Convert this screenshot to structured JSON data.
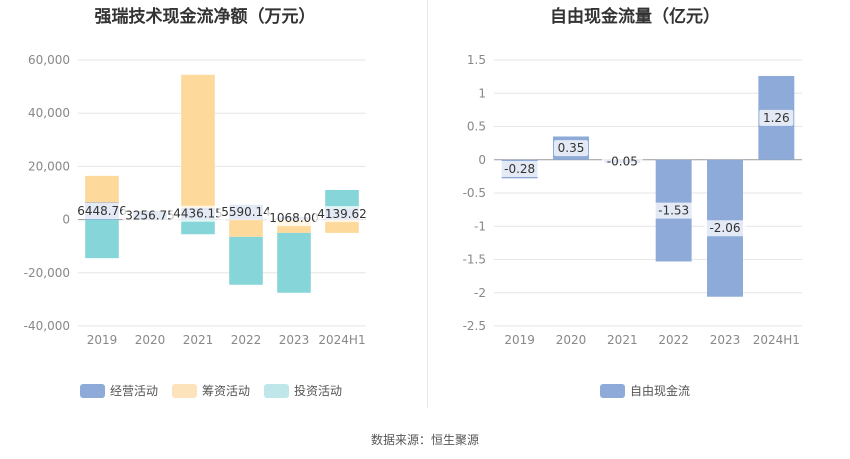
{
  "titles": {
    "left": "强瑞技术现金流净额（万元）",
    "right": "自由现金流量（亿元）"
  },
  "source": "数据来源：恒生聚源",
  "colors": {
    "operating": "#8eaad8",
    "financing": "#fdd99c",
    "investing": "#86d5d8",
    "free_cash_flow": "#8eaad8"
  },
  "chart_data": [
    {
      "type": "bar",
      "stacked": true,
      "title": "强瑞技术现金流净额（万元）",
      "categories": [
        "2019",
        "2020",
        "2021",
        "2022",
        "2023",
        "2024H1"
      ],
      "ylim": [
        -40000,
        60000
      ],
      "yticks": [
        -40000,
        -20000,
        0,
        20000,
        40000,
        60000
      ],
      "ytick_labels": [
        "-40,000",
        "-20,000",
        "0",
        "20,000",
        "40,000",
        "60,000"
      ],
      "grid": true,
      "legend": "bottom-left",
      "series": [
        {
          "name": "经营活动",
          "values": [
            6448.76,
            3256.75,
            4436.15,
            5590.14,
            1068.0,
            4139.62
          ],
          "labels": [
            "6448.76",
            "3256.75",
            "4436.15",
            "5590.14",
            "1068.00",
            "4139.62"
          ]
        },
        {
          "name": "筹资活动",
          "values": [
            10000,
            0,
            50000,
            -6500,
            -5000,
            -5000
          ]
        },
        {
          "name": "投资活动",
          "values": [
            -14500,
            0,
            -5500,
            -18000,
            -22500,
            7000
          ]
        }
      ]
    },
    {
      "type": "bar",
      "title": "自由现金流量（亿元）",
      "categories": [
        "2019",
        "2020",
        "2021",
        "2022",
        "2023",
        "2024H1"
      ],
      "ylim": [
        -2.5,
        1.5
      ],
      "yticks": [
        -2.5,
        -2,
        -1.5,
        -1,
        -0.5,
        0,
        0.5,
        1,
        1.5
      ],
      "ytick_labels": [
        "-2.5",
        "-2",
        "-1.5",
        "-1",
        "-0.5",
        "0",
        "0.5",
        "1",
        "1.5"
      ],
      "grid": true,
      "legend": "bottom-center",
      "series": [
        {
          "name": "自由现金流",
          "values": [
            -0.28,
            0.35,
            -0.05,
            -1.53,
            -2.06,
            1.26
          ],
          "labels": [
            "-0.28",
            "0.35",
            "-0.05",
            "-1.53",
            "-2.06",
            "1.26"
          ]
        }
      ]
    }
  ]
}
